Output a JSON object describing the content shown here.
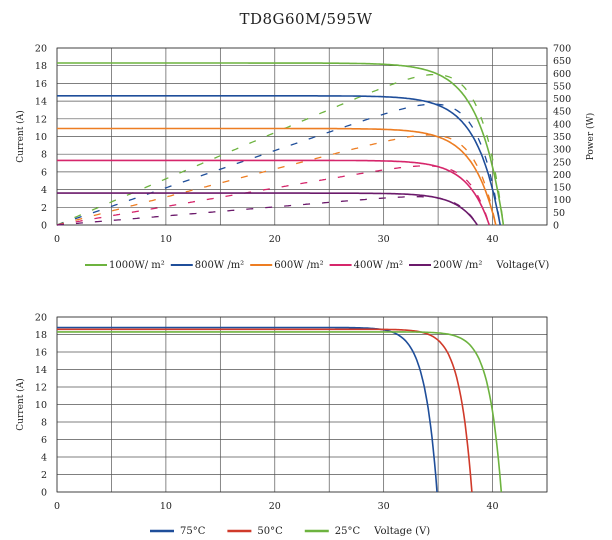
{
  "chart_data": [
    {
      "type": "line",
      "title": "TD8G60M/595W",
      "xlabel": "Voltage(V)",
      "ylabel": "Current (A)",
      "y2label": "Power (W)",
      "xlim": [
        0,
        45
      ],
      "ylim": [
        0,
        20
      ],
      "y2lim": [
        0,
        700
      ],
      "xticks": [
        0,
        10,
        20,
        30,
        40
      ],
      "yticks": [
        0,
        2,
        4,
        6,
        8,
        10,
        12,
        14,
        16,
        18,
        20
      ],
      "y2ticks": [
        0,
        50,
        100,
        150,
        200,
        250,
        300,
        350,
        400,
        450,
        500,
        550,
        600,
        650,
        700
      ],
      "grid": true,
      "legend_position": "bottom",
      "series": [
        {
          "name": "1000W/ m²",
          "color": "#6db33f",
          "isc": 18.3,
          "voc": 41.0,
          "vmp": 34.6,
          "pmax": 595
        },
        {
          "name": "800W /m²",
          "color": "#1f4e9a",
          "isc": 14.6,
          "voc": 40.7,
          "vmp": 34.5,
          "pmax": 478
        },
        {
          "name": "600W /m²",
          "color": "#ed7d22",
          "isc": 10.9,
          "voc": 40.3,
          "vmp": 34.2,
          "pmax": 356
        },
        {
          "name": "400W /m²",
          "color": "#d6266b",
          "isc": 7.3,
          "voc": 39.7,
          "vmp": 33.8,
          "pmax": 234
        },
        {
          "name": "200W /m²",
          "color": "#6b1a6b",
          "isc": 3.6,
          "voc": 38.6,
          "vmp": 33.0,
          "pmax": 112
        }
      ]
    },
    {
      "type": "line",
      "title": "",
      "xlabel": "Voltage (V)",
      "ylabel": "Current (A)",
      "xlim": [
        0,
        45
      ],
      "ylim": [
        0,
        20
      ],
      "xticks": [
        0,
        10,
        20,
        30,
        40
      ],
      "yticks": [
        0,
        2,
        4,
        6,
        8,
        10,
        12,
        14,
        16,
        18,
        20
      ],
      "grid": true,
      "legend_position": "bottom",
      "series": [
        {
          "name": "75°C",
          "color": "#1f4e9a",
          "isc": 18.8,
          "voc": 34.9
        },
        {
          "name": "50°C",
          "color": "#d03a2a",
          "isc": 18.6,
          "voc": 38.1
        },
        {
          "name": "25°C",
          "color": "#6db33f",
          "isc": 18.3,
          "voc": 40.8
        }
      ]
    }
  ]
}
